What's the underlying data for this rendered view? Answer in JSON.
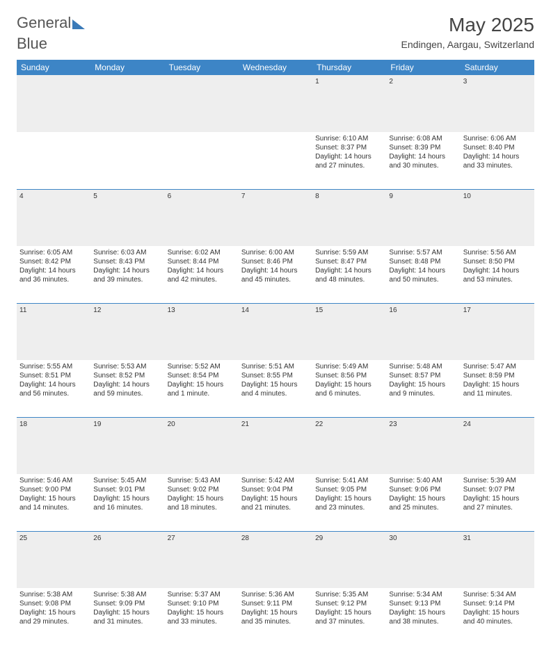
{
  "logo": {
    "part1": "General",
    "part2": "Blue"
  },
  "title": "May 2025",
  "location": "Endingen, Aargau, Switzerland",
  "weekdays": [
    "Sunday",
    "Monday",
    "Tuesday",
    "Wednesday",
    "Thursday",
    "Friday",
    "Saturday"
  ],
  "colors": {
    "header_bg": "#3d85c6",
    "header_text": "#ffffff",
    "daynum_bg": "#eeeeee",
    "separator": "#3d85c6",
    "logo_gray": "#555555",
    "logo_blue": "#3a7ab8"
  },
  "weeks": [
    [
      null,
      null,
      null,
      null,
      {
        "n": "1",
        "sunrise": "6:10 AM",
        "sunset": "8:37 PM",
        "dl1": "Daylight: 14 hours",
        "dl2": "and 27 minutes."
      },
      {
        "n": "2",
        "sunrise": "6:08 AM",
        "sunset": "8:39 PM",
        "dl1": "Daylight: 14 hours",
        "dl2": "and 30 minutes."
      },
      {
        "n": "3",
        "sunrise": "6:06 AM",
        "sunset": "8:40 PM",
        "dl1": "Daylight: 14 hours",
        "dl2": "and 33 minutes."
      }
    ],
    [
      {
        "n": "4",
        "sunrise": "6:05 AM",
        "sunset": "8:42 PM",
        "dl1": "Daylight: 14 hours",
        "dl2": "and 36 minutes."
      },
      {
        "n": "5",
        "sunrise": "6:03 AM",
        "sunset": "8:43 PM",
        "dl1": "Daylight: 14 hours",
        "dl2": "and 39 minutes."
      },
      {
        "n": "6",
        "sunrise": "6:02 AM",
        "sunset": "8:44 PM",
        "dl1": "Daylight: 14 hours",
        "dl2": "and 42 minutes."
      },
      {
        "n": "7",
        "sunrise": "6:00 AM",
        "sunset": "8:46 PM",
        "dl1": "Daylight: 14 hours",
        "dl2": "and 45 minutes."
      },
      {
        "n": "8",
        "sunrise": "5:59 AM",
        "sunset": "8:47 PM",
        "dl1": "Daylight: 14 hours",
        "dl2": "and 48 minutes."
      },
      {
        "n": "9",
        "sunrise": "5:57 AM",
        "sunset": "8:48 PM",
        "dl1": "Daylight: 14 hours",
        "dl2": "and 50 minutes."
      },
      {
        "n": "10",
        "sunrise": "5:56 AM",
        "sunset": "8:50 PM",
        "dl1": "Daylight: 14 hours",
        "dl2": "and 53 minutes."
      }
    ],
    [
      {
        "n": "11",
        "sunrise": "5:55 AM",
        "sunset": "8:51 PM",
        "dl1": "Daylight: 14 hours",
        "dl2": "and 56 minutes."
      },
      {
        "n": "12",
        "sunrise": "5:53 AM",
        "sunset": "8:52 PM",
        "dl1": "Daylight: 14 hours",
        "dl2": "and 59 minutes."
      },
      {
        "n": "13",
        "sunrise": "5:52 AM",
        "sunset": "8:54 PM",
        "dl1": "Daylight: 15 hours",
        "dl2": "and 1 minute."
      },
      {
        "n": "14",
        "sunrise": "5:51 AM",
        "sunset": "8:55 PM",
        "dl1": "Daylight: 15 hours",
        "dl2": "and 4 minutes."
      },
      {
        "n": "15",
        "sunrise": "5:49 AM",
        "sunset": "8:56 PM",
        "dl1": "Daylight: 15 hours",
        "dl2": "and 6 minutes."
      },
      {
        "n": "16",
        "sunrise": "5:48 AM",
        "sunset": "8:57 PM",
        "dl1": "Daylight: 15 hours",
        "dl2": "and 9 minutes."
      },
      {
        "n": "17",
        "sunrise": "5:47 AM",
        "sunset": "8:59 PM",
        "dl1": "Daylight: 15 hours",
        "dl2": "and 11 minutes."
      }
    ],
    [
      {
        "n": "18",
        "sunrise": "5:46 AM",
        "sunset": "9:00 PM",
        "dl1": "Daylight: 15 hours",
        "dl2": "and 14 minutes."
      },
      {
        "n": "19",
        "sunrise": "5:45 AM",
        "sunset": "9:01 PM",
        "dl1": "Daylight: 15 hours",
        "dl2": "and 16 minutes."
      },
      {
        "n": "20",
        "sunrise": "5:43 AM",
        "sunset": "9:02 PM",
        "dl1": "Daylight: 15 hours",
        "dl2": "and 18 minutes."
      },
      {
        "n": "21",
        "sunrise": "5:42 AM",
        "sunset": "9:04 PM",
        "dl1": "Daylight: 15 hours",
        "dl2": "and 21 minutes."
      },
      {
        "n": "22",
        "sunrise": "5:41 AM",
        "sunset": "9:05 PM",
        "dl1": "Daylight: 15 hours",
        "dl2": "and 23 minutes."
      },
      {
        "n": "23",
        "sunrise": "5:40 AM",
        "sunset": "9:06 PM",
        "dl1": "Daylight: 15 hours",
        "dl2": "and 25 minutes."
      },
      {
        "n": "24",
        "sunrise": "5:39 AM",
        "sunset": "9:07 PM",
        "dl1": "Daylight: 15 hours",
        "dl2": "and 27 minutes."
      }
    ],
    [
      {
        "n": "25",
        "sunrise": "5:38 AM",
        "sunset": "9:08 PM",
        "dl1": "Daylight: 15 hours",
        "dl2": "and 29 minutes."
      },
      {
        "n": "26",
        "sunrise": "5:38 AM",
        "sunset": "9:09 PM",
        "dl1": "Daylight: 15 hours",
        "dl2": "and 31 minutes."
      },
      {
        "n": "27",
        "sunrise": "5:37 AM",
        "sunset": "9:10 PM",
        "dl1": "Daylight: 15 hours",
        "dl2": "and 33 minutes."
      },
      {
        "n": "28",
        "sunrise": "5:36 AM",
        "sunset": "9:11 PM",
        "dl1": "Daylight: 15 hours",
        "dl2": "and 35 minutes."
      },
      {
        "n": "29",
        "sunrise": "5:35 AM",
        "sunset": "9:12 PM",
        "dl1": "Daylight: 15 hours",
        "dl2": "and 37 minutes."
      },
      {
        "n": "30",
        "sunrise": "5:34 AM",
        "sunset": "9:13 PM",
        "dl1": "Daylight: 15 hours",
        "dl2": "and 38 minutes."
      },
      {
        "n": "31",
        "sunrise": "5:34 AM",
        "sunset": "9:14 PM",
        "dl1": "Daylight: 15 hours",
        "dl2": "and 40 minutes."
      }
    ]
  ]
}
